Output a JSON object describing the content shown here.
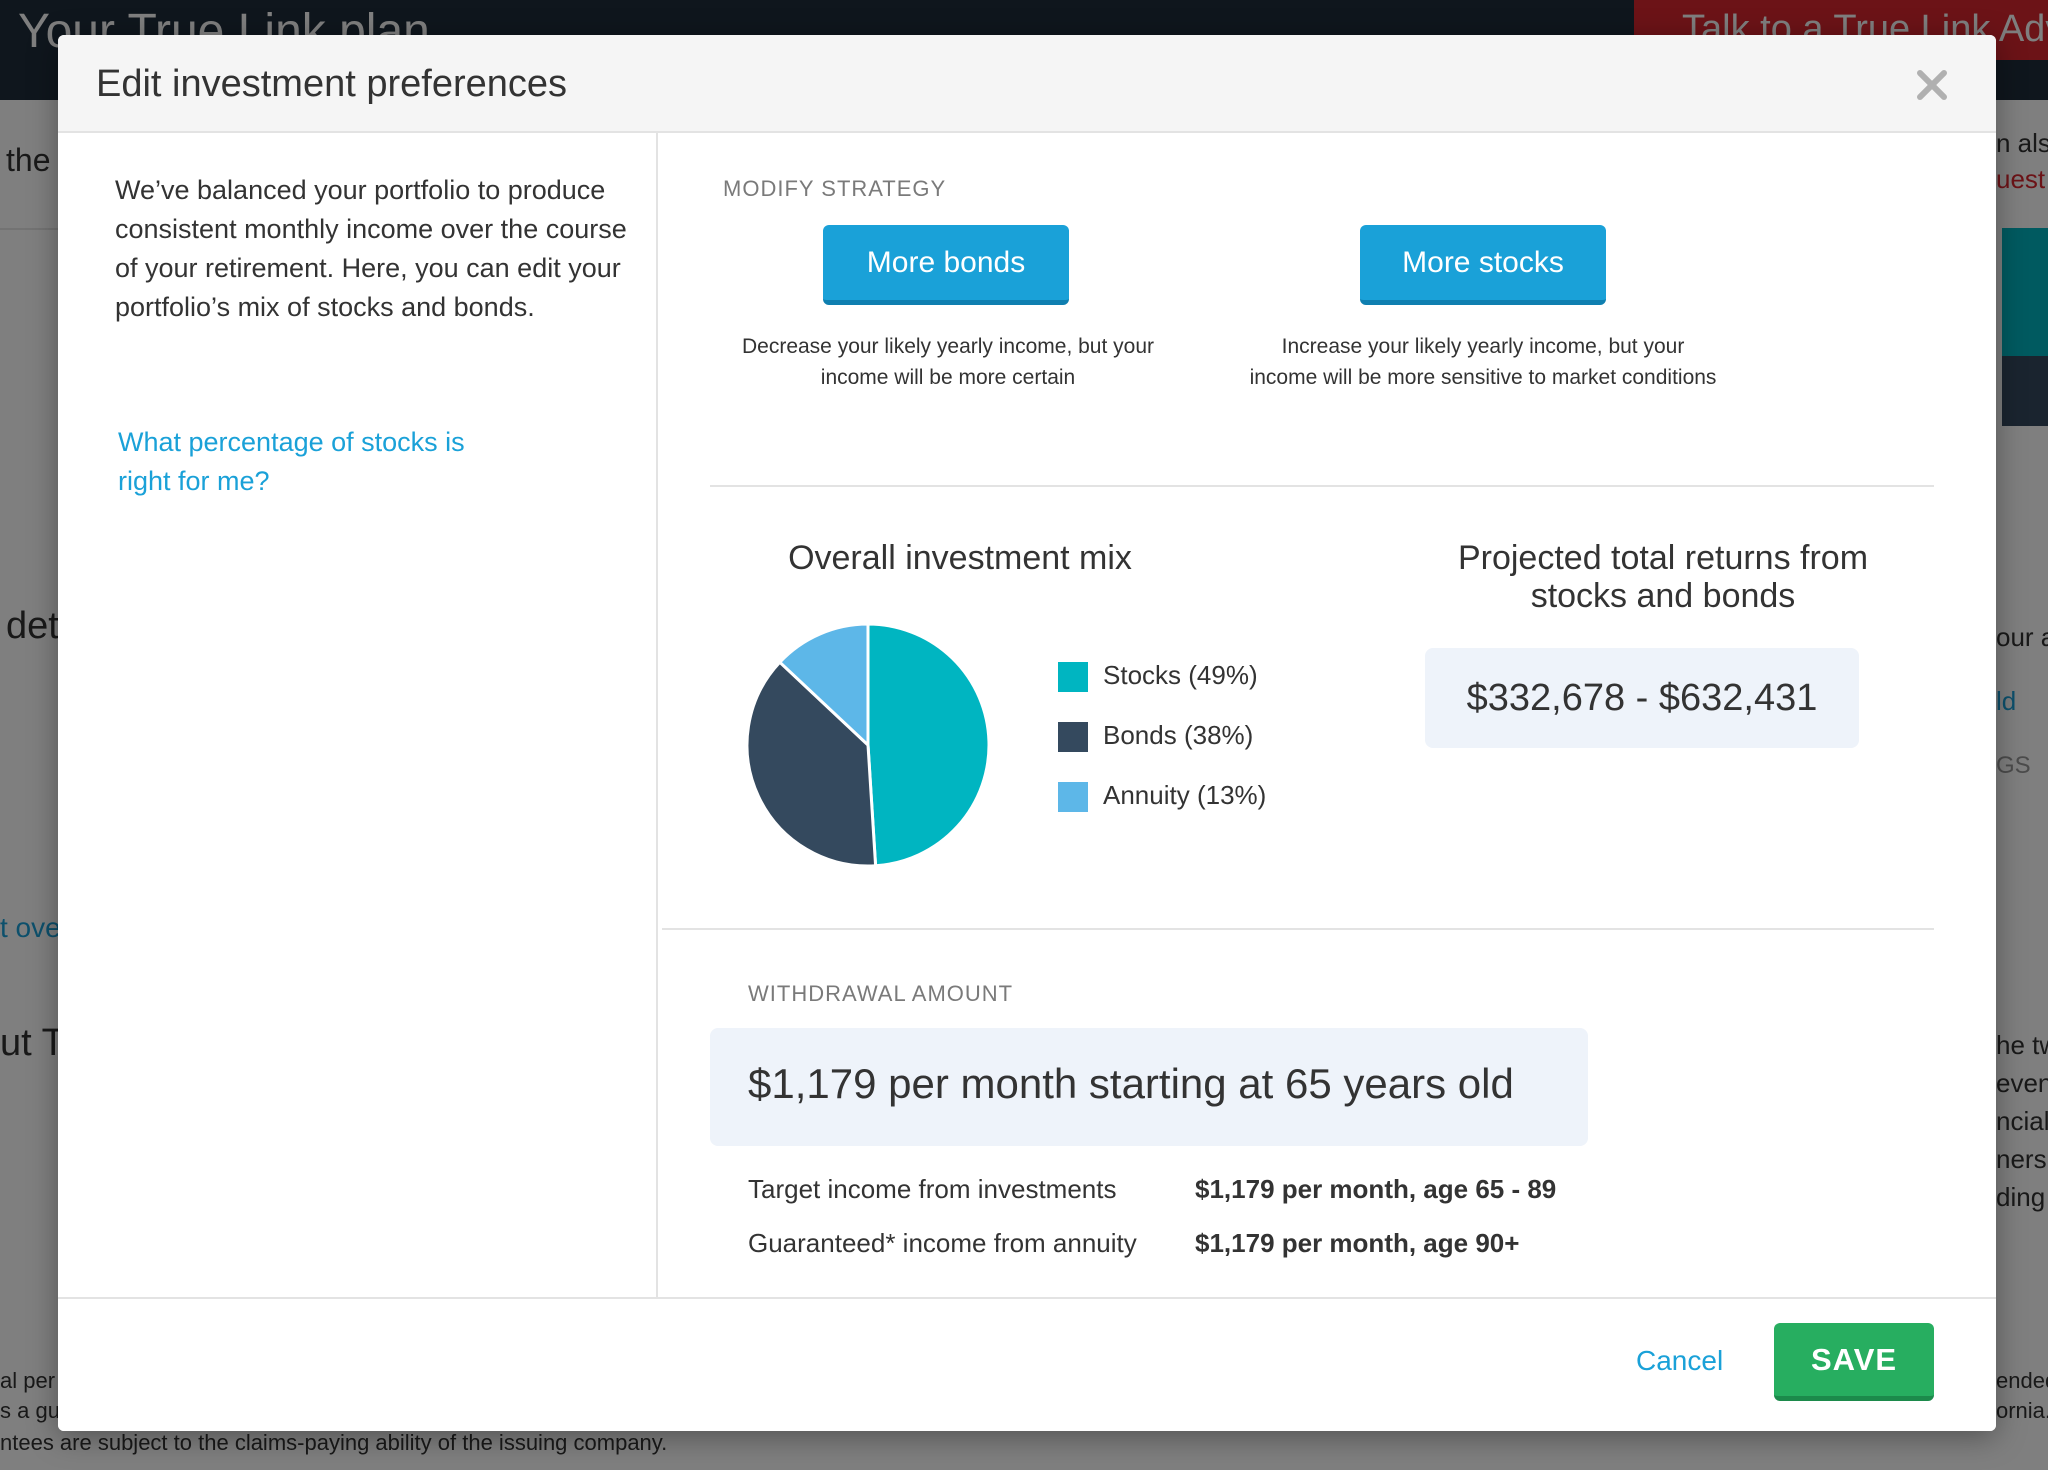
{
  "background": {
    "page_title": "Your True Link plan",
    "cta_label": "Talk to a True Link Advisor",
    "fragments": [
      "the",
      "det",
      "t ove",
      "ut T",
      "al per",
      "s a gu",
      "ntees are subject to the claims-paying ability of the issuing company.",
      "n also",
      "uest",
      "our a",
      "ld",
      "GS",
      "he tw",
      "even",
      "ncial",
      "ners",
      "ding",
      "ended",
      "ornia."
    ]
  },
  "modal": {
    "title": "Edit investment preferences",
    "close_icon": "close-icon",
    "intro": "We’ve balanced your portfolio to produce consistent monthly income over the course of your retirement. Here, you can edit your portfolio’s mix of stocks and bonds.",
    "help_link": "What percentage of stocks is right for me?",
    "strategy": {
      "label": "MODIFY STRATEGY",
      "bonds_button": "More bonds",
      "bonds_desc": "Decrease your likely yearly income, but your income will be more certain",
      "stocks_button": "More stocks",
      "stocks_desc": "Increase your likely yearly income, but your income will be more sensitive to market conditions"
    },
    "mix": {
      "title": "Overall investment mix",
      "legend": [
        {
          "label": "Stocks (49%)",
          "color": "#00b5c1"
        },
        {
          "label": "Bonds (38%)",
          "color": "#34495e"
        },
        {
          "label": "Annuity (13%)",
          "color": "#5db7e8"
        }
      ]
    },
    "returns": {
      "title": "Projected total returns from stocks and bonds",
      "value": "$332,678 - $632,431"
    },
    "withdrawal": {
      "label": "WITHDRAWAL AMOUNT",
      "summary": "$1,179 per month starting at 65 years old",
      "rows": [
        {
          "label": "Target income from investments",
          "value": "$1,179 per month, age 65 - 89"
        },
        {
          "label": "Guaranteed* income from annuity",
          "value": "$1,179 per month, age 90+"
        }
      ]
    },
    "footer": {
      "cancel": "Cancel",
      "save": "SAVE"
    }
  },
  "chart_data": {
    "type": "pie",
    "categories": [
      "Stocks",
      "Bonds",
      "Annuity"
    ],
    "values": [
      49,
      38,
      13
    ],
    "colors": [
      "#00b5c1",
      "#34495e",
      "#5db7e8"
    ],
    "title": "Overall investment mix",
    "legend": "right"
  }
}
